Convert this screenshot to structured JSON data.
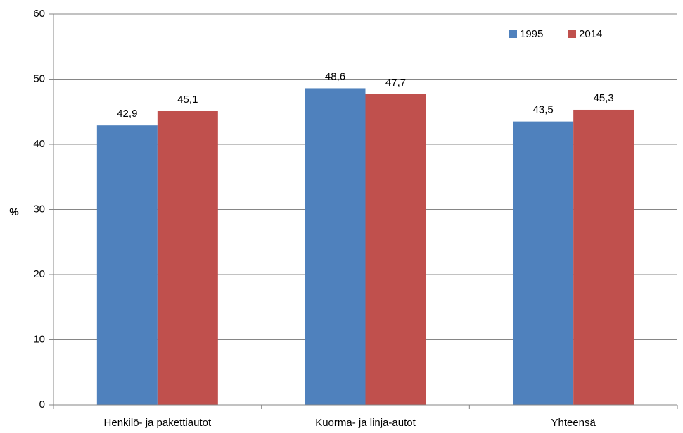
{
  "chart_data": {
    "type": "bar",
    "categories": [
      "Henkilö- ja pakettiautot",
      "Kuorma- ja linja-autot",
      "Yhteensä"
    ],
    "series": [
      {
        "name": "1995",
        "values": [
          42.9,
          48.6,
          43.5
        ],
        "labels": [
          "42,9",
          "48,6",
          "43,5"
        ],
        "color": "#4F81BD"
      },
      {
        "name": "2014",
        "values": [
          45.1,
          47.7,
          45.3
        ],
        "labels": [
          "45,1",
          "47,7",
          "45,3"
        ],
        "color": "#C0504D"
      }
    ],
    "title": "",
    "xlabel": "",
    "ylabel": "%",
    "ylim": [
      0,
      60
    ],
    "yticks": [
      0,
      10,
      20,
      30,
      40,
      50,
      60
    ],
    "grid": true,
    "legend_position": "top-right"
  }
}
